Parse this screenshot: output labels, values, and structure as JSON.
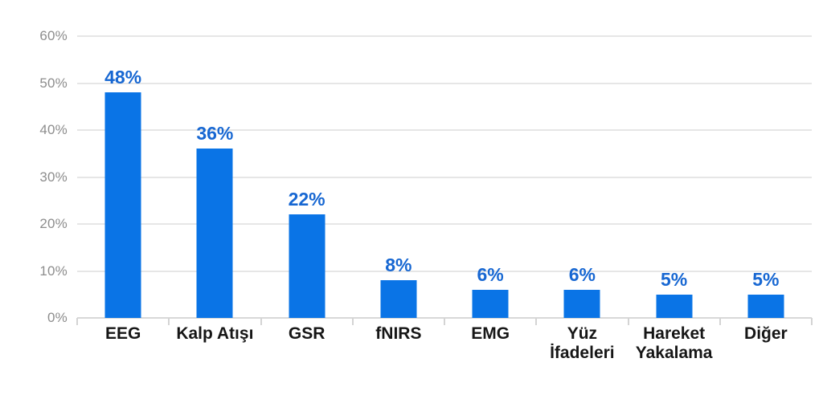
{
  "chart_data": {
    "type": "bar",
    "title": "",
    "xlabel": "",
    "ylabel": "",
    "categories": [
      "EEG",
      "Kalp Atışı",
      "GSR",
      "fNIRS",
      "EMG",
      "Yüz İfadeleri",
      "Hareket Yakalama",
      "Diğer"
    ],
    "values": [
      48,
      36,
      22,
      8,
      6,
      6,
      5,
      5
    ],
    "value_labels": [
      "48%",
      "36%",
      "22%",
      "8%",
      "6%",
      "6%",
      "5%",
      "5%"
    ],
    "ylim": [
      0,
      60
    ],
    "y_ticks": [
      {
        "value": 0,
        "label": "0%"
      },
      {
        "value": 10,
        "label": "10%"
      },
      {
        "value": 20,
        "label": "20%"
      },
      {
        "value": 30,
        "label": "30%"
      },
      {
        "value": 40,
        "label": "40%"
      },
      {
        "value": 50,
        "label": "50%"
      },
      {
        "value": 60,
        "label": "60%"
      }
    ],
    "grid": "horizontal",
    "legend": "none",
    "colors": {
      "bar": "#0a74e6",
      "value_label": "#1767d2",
      "gridline": "#e6e6e6",
      "axis_line": "#d8d8d8",
      "tick_mark": "#d4d4d4",
      "y_tick_label": "#8d8d8d",
      "x_axis_label": "#161616",
      "background": "#ffffff"
    }
  }
}
